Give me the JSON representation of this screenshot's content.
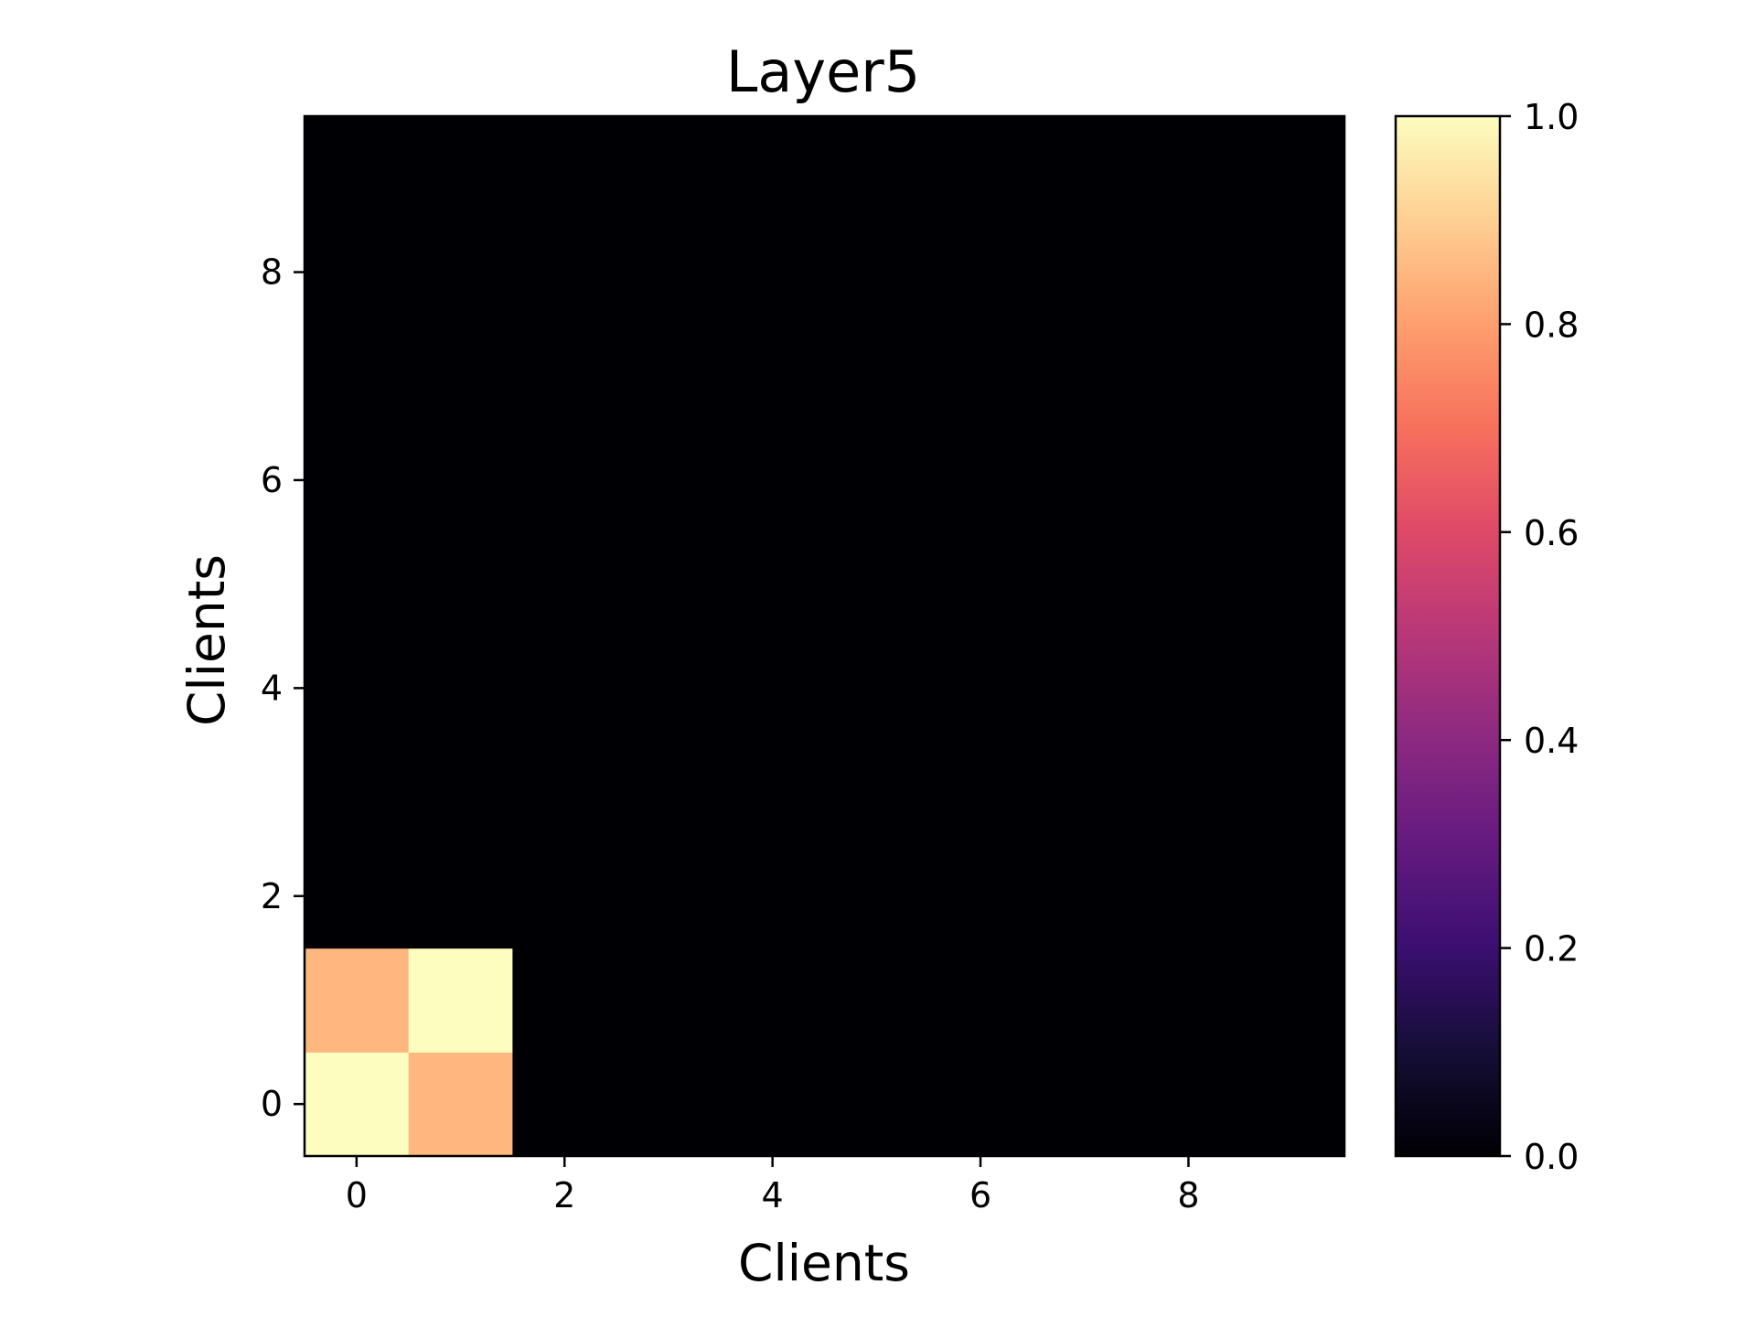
{
  "chart_data": {
    "type": "heatmap",
    "title": "Layer5",
    "xlabel": "Clients",
    "ylabel": "Clients",
    "x_categories": [
      0,
      1,
      2,
      3,
      4,
      5,
      6,
      7,
      8,
      9
    ],
    "y_categories": [
      0,
      1,
      2,
      3,
      4,
      5,
      6,
      7,
      8,
      9
    ],
    "y_origin": "bottom",
    "x_ticks": [
      "0",
      "2",
      "4",
      "6",
      "8"
    ],
    "y_ticks": [
      "0",
      "2",
      "4",
      "6",
      "8"
    ],
    "values": [
      [
        1.0,
        0.85,
        0,
        0,
        0,
        0,
        0,
        0,
        0,
        0
      ],
      [
        0.85,
        1.0,
        0,
        0,
        0,
        0,
        0,
        0,
        0,
        0
      ],
      [
        0,
        0,
        0,
        0,
        0,
        0,
        0,
        0,
        0,
        0
      ],
      [
        0,
        0,
        0,
        0,
        0,
        0,
        0,
        0,
        0,
        0
      ],
      [
        0,
        0,
        0,
        0,
        0,
        0,
        0,
        0,
        0,
        0
      ],
      [
        0,
        0,
        0,
        0,
        0,
        0,
        0,
        0,
        0,
        0
      ],
      [
        0,
        0,
        0,
        0,
        0,
        0,
        0,
        0,
        0,
        0
      ],
      [
        0,
        0,
        0,
        0,
        0,
        0,
        0,
        0,
        0,
        0
      ],
      [
        0,
        0,
        0,
        0,
        0,
        0,
        0,
        0,
        0,
        0
      ],
      [
        0,
        0,
        0,
        0,
        0,
        0,
        0,
        0,
        0,
        0
      ]
    ],
    "colormap": "magma",
    "vrange": [
      0.0,
      1.0
    ],
    "colorbar_ticks": [
      "0.0",
      "0.2",
      "0.4",
      "0.6",
      "0.8",
      "1.0"
    ],
    "grid": false,
    "colorbar_placement": "right"
  }
}
